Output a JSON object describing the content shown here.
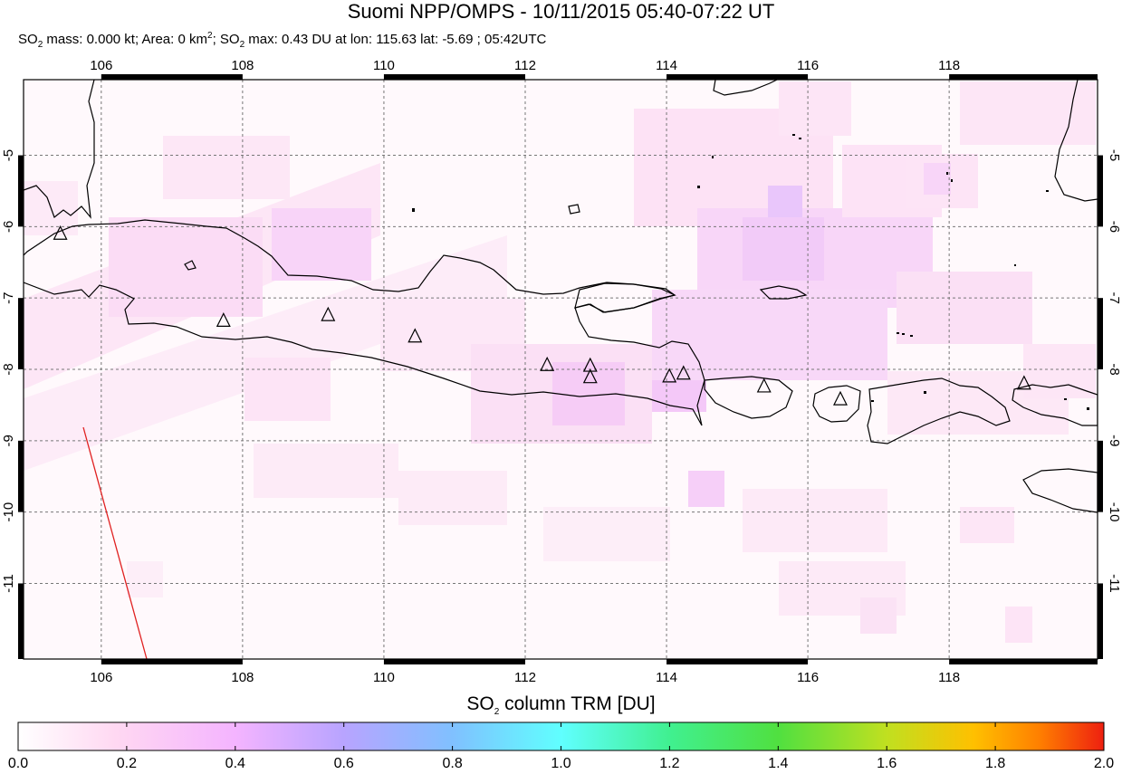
{
  "title": "Suomi NPP/OMPS - 10/11/2015 05:40-07:22 UT",
  "subtitle": {
    "mass_prefix": "SO",
    "mass_sub": "2",
    "mass_text": " mass: 0.000 kt; Area: 0 km",
    "area_sup": "2",
    "max_prefix": "; SO",
    "max_sub": "2",
    "max_text": " max: 0.43 DU at lon: 115.63 lat: -5.69 ; 05:42UTC"
  },
  "map": {
    "lon_range": [
      104.9,
      120.1
    ],
    "lat_range": [
      -12.06,
      -3.94
    ],
    "lon_ticks": [
      "106",
      "108",
      "110",
      "112",
      "114",
      "116",
      "118"
    ],
    "lat_ticks": [
      "-5",
      "-6",
      "-7",
      "-8",
      "-9",
      "-10",
      "-11"
    ],
    "grid": "dashed",
    "coastline_color": "#000000",
    "swath_edge_color": "#e02020",
    "volcano_marker": "triangle-icon",
    "volcanoes": [
      {
        "lon": 105.42,
        "lat": -6.1
      },
      {
        "lon": 107.73,
        "lat": -7.32
      },
      {
        "lon": 109.21,
        "lat": -7.24
      },
      {
        "lon": 110.44,
        "lat": -7.54
      },
      {
        "lon": 112.31,
        "lat": -7.94
      },
      {
        "lon": 112.92,
        "lat": -7.95
      },
      {
        "lon": 112.92,
        "lat": -8.11
      },
      {
        "lon": 114.04,
        "lat": -8.1
      },
      {
        "lon": 114.24,
        "lat": -8.06
      },
      {
        "lon": 115.38,
        "lat": -8.24
      },
      {
        "lon": 116.46,
        "lat": -8.42
      },
      {
        "lon": 119.06,
        "lat": -8.2
      }
    ]
  },
  "colorbar": {
    "title_prefix": "SO",
    "title_sub": "2",
    "title_suffix": " column TRM [DU]",
    "ticks": [
      "0.0",
      "0.2",
      "0.4",
      "0.6",
      "0.8",
      "1.0",
      "1.2",
      "1.4",
      "1.6",
      "1.8",
      "2.0"
    ],
    "range": [
      0,
      2
    ],
    "colors": [
      "#ffffff",
      "#ffd0f4",
      "#f0b0ff",
      "#b0a0ff",
      "#7fd8ff",
      "#60ffff",
      "#40f080",
      "#60e040",
      "#c0e020",
      "#ffc000",
      "#ff8000",
      "#ee2010"
    ]
  }
}
